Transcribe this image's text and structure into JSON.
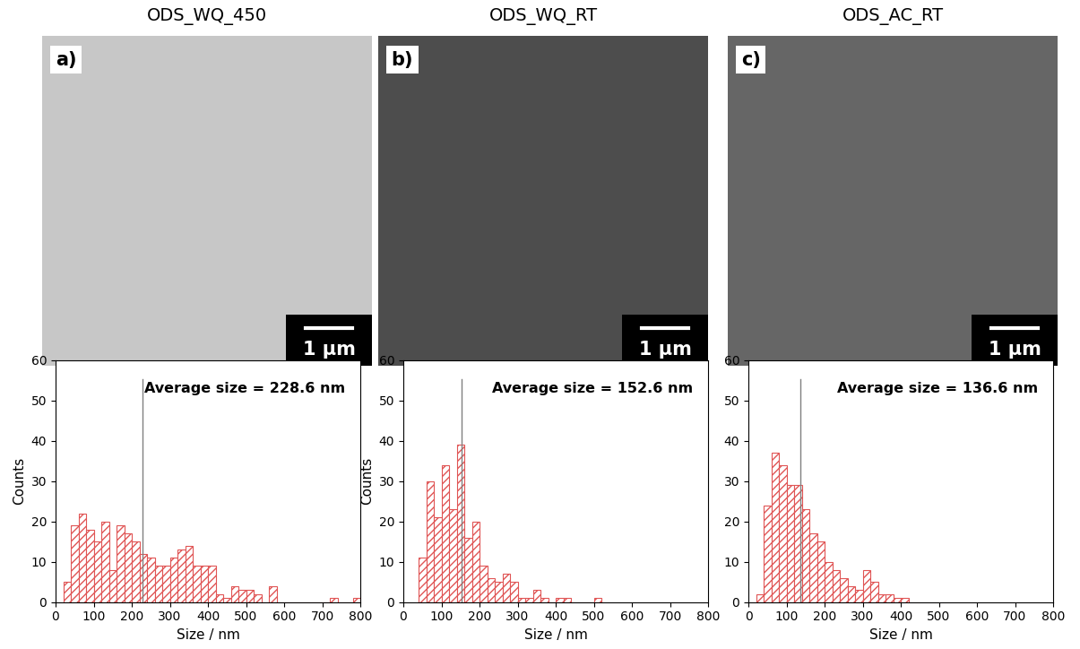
{
  "panels": [
    {
      "title": "ODS_WQ_450",
      "label": "a)",
      "scale_bar": "1 µm"
    },
    {
      "title": "ODS_WQ_RT",
      "label": "b)",
      "scale_bar": "1 µm"
    },
    {
      "title": "ODS_AC_RT",
      "label": "c)",
      "scale_bar": "1 µm"
    }
  ],
  "chart_data": [
    {
      "type": "histogram",
      "color": "#e05555",
      "bins": [
        20,
        40,
        60,
        80,
        100,
        120,
        140,
        160,
        180,
        200,
        220,
        240,
        260,
        280,
        300,
        320,
        340,
        360,
        380,
        400,
        420,
        440,
        460,
        480,
        500,
        520,
        540,
        560,
        580,
        600,
        620,
        640,
        660,
        680,
        700,
        720,
        740,
        760,
        780,
        800
      ],
      "counts": [
        5,
        19,
        22,
        18,
        15,
        20,
        8,
        19,
        17,
        15,
        12,
        11,
        9,
        9,
        11,
        13,
        14,
        9,
        9,
        9,
        2,
        1,
        4,
        3,
        3,
        2,
        0,
        4,
        0,
        0,
        0,
        0,
        0,
        0,
        0,
        1,
        0,
        0,
        1
      ],
      "average": 228.6,
      "annotation": "Average size = 228.6 nm",
      "xlabel": "Size / nm",
      "ylabel": "Counts",
      "xlim": [
        0,
        800
      ],
      "ylim": [
        0,
        60
      ],
      "xticks": [
        0,
        100,
        200,
        300,
        400,
        500,
        600,
        700,
        800
      ],
      "yticks": [
        0,
        10,
        20,
        30,
        40,
        50,
        60
      ]
    },
    {
      "type": "histogram",
      "color": "#e05555",
      "bins": [
        40,
        60,
        80,
        100,
        120,
        140,
        160,
        180,
        200,
        220,
        240,
        260,
        280,
        300,
        320,
        340,
        360,
        380,
        400,
        420,
        440,
        460,
        480,
        500,
        520
      ],
      "counts": [
        11,
        30,
        21,
        34,
        23,
        39,
        16,
        20,
        9,
        6,
        5,
        7,
        5,
        1,
        1,
        3,
        1,
        0,
        1,
        1,
        0,
        0,
        0,
        1
      ],
      "average": 152.6,
      "annotation": "Average size = 152.6 nm",
      "xlabel": "Size / nm",
      "ylabel": "Counts",
      "xlim": [
        0,
        800
      ],
      "ylim": [
        0,
        60
      ],
      "xticks": [
        0,
        100,
        200,
        300,
        400,
        500,
        600,
        700,
        800
      ],
      "yticks": [
        0,
        10,
        20,
        30,
        40,
        50,
        60
      ]
    },
    {
      "type": "histogram",
      "color": "#e05555",
      "bins": [
        20,
        40,
        60,
        80,
        100,
        120,
        140,
        160,
        180,
        200,
        220,
        240,
        260,
        280,
        300,
        320,
        340,
        360,
        380,
        400,
        420
      ],
      "counts": [
        2,
        24,
        37,
        34,
        29,
        29,
        23,
        17,
        15,
        10,
        8,
        6,
        4,
        3,
        8,
        5,
        2,
        2,
        1,
        1
      ],
      "average": 136.6,
      "annotation": "Average size = 136.6 nm",
      "xlabel": "Size / nm",
      "xlim": [
        0,
        800
      ],
      "ylim": [
        0,
        60
      ],
      "xticks": [
        0,
        100,
        200,
        300,
        400,
        500,
        600,
        700,
        800
      ],
      "yticks": [
        0,
        10,
        20,
        30,
        40,
        50,
        60
      ]
    }
  ]
}
